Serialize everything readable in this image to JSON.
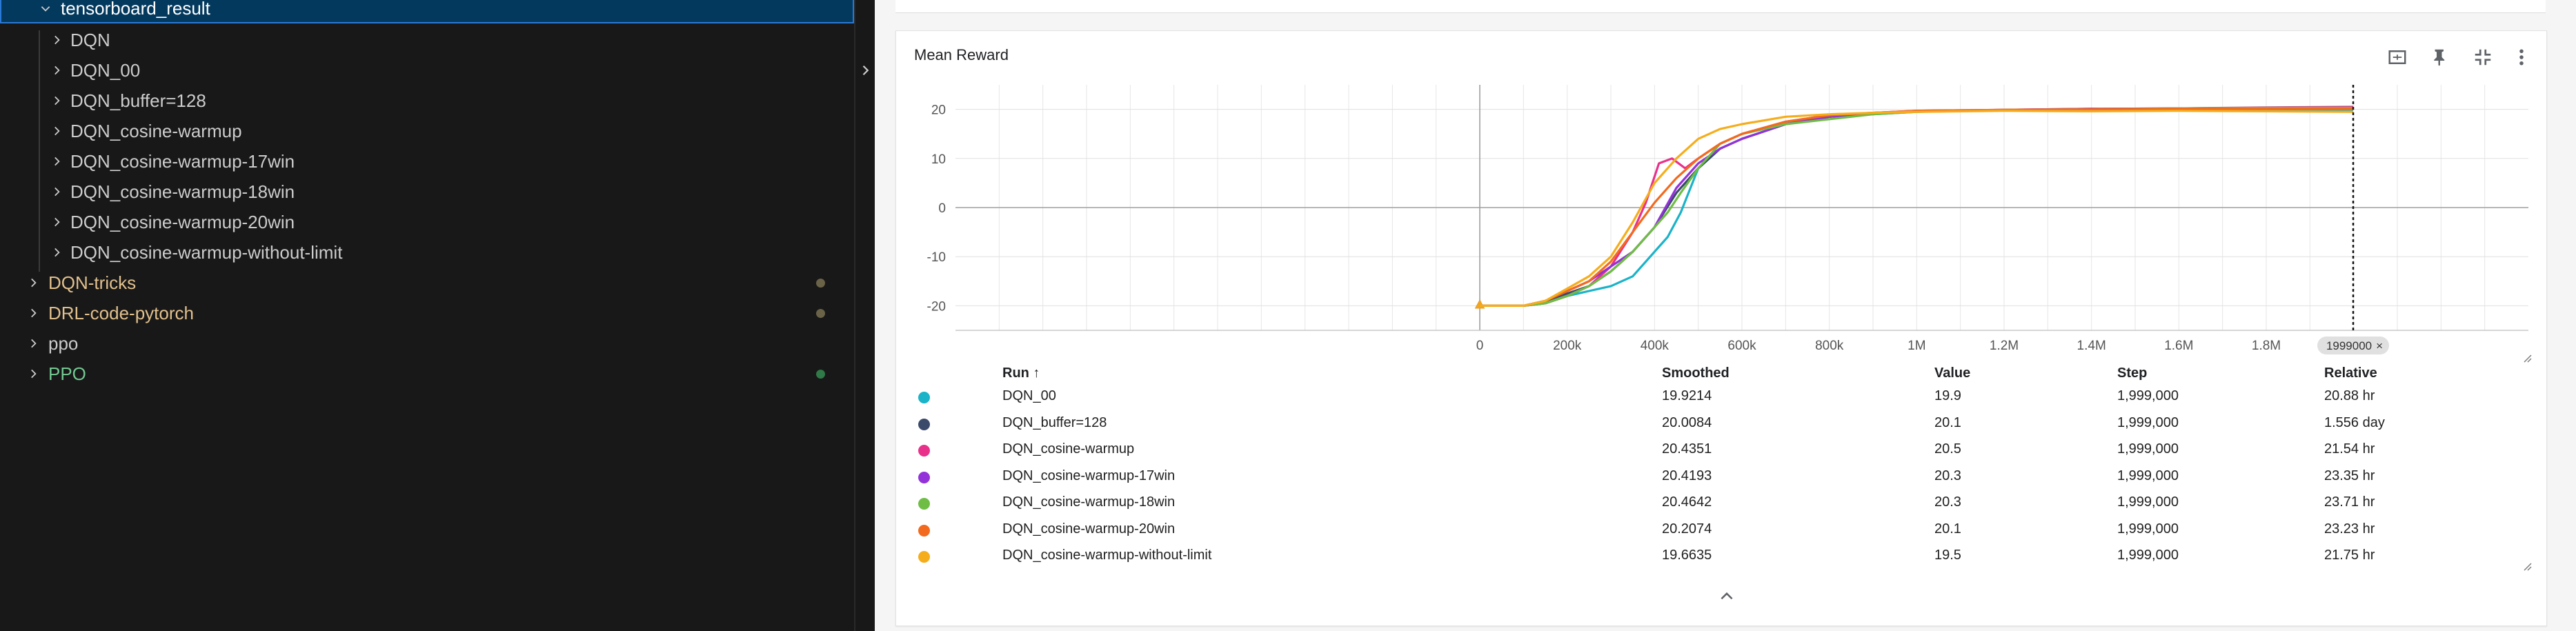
{
  "explorer": {
    "selected_folder": "tensorboard_result",
    "children": [
      "DQN",
      "DQN_00",
      "DQN_buffer=128",
      "DQN_cosine-warmup",
      "DQN_cosine-warmup-17win",
      "DQN_cosine-warmup-18win",
      "DQN_cosine-warmup-20win",
      "DQN_cosine-warmup-without-limit"
    ],
    "siblings": [
      {
        "label": "DQN-tricks",
        "color": "#e2c08d",
        "dot_color": "#6b6347"
      },
      {
        "label": "DRL-code-pytorch",
        "color": "#e2c08d",
        "dot_color": "#6b6347"
      },
      {
        "label": "ppo",
        "color": "#cccccc",
        "dot_color": ""
      },
      {
        "label": "PPO",
        "color": "#73c991",
        "dot_color": "#2f7a46"
      }
    ]
  },
  "chart_data": {
    "type": "line",
    "title": "Mean Reward",
    "xlabel": "",
    "ylabel": "",
    "xlim": [
      -1200000,
      2400000
    ],
    "ylim": [
      -25,
      25
    ],
    "x_ticks": [
      "0",
      "200k",
      "400k",
      "600k",
      "800k",
      "1M",
      "1.2M",
      "1.4M",
      "1.6M",
      "1.8M"
    ],
    "y_ticks": [
      "20",
      "10",
      "0",
      "-10",
      "-20"
    ],
    "cursor_label": "1999000",
    "grid": true,
    "series": [
      {
        "name": "DQN_00",
        "color": "#1ab3c8",
        "x": [
          0,
          50000,
          100000,
          150000,
          200000,
          250000,
          300000,
          350000,
          380000,
          400000,
          430000,
          460000,
          500000,
          550000,
          600000,
          700000,
          800000,
          900000,
          1000000,
          1200000,
          1400000,
          1600000,
          1800000,
          1999000
        ],
        "y": [
          -20,
          -20,
          -20,
          -19.5,
          -18,
          -17,
          -16,
          -14,
          -11,
          -9,
          -6,
          -1,
          8,
          12,
          14,
          17,
          18.5,
          19,
          19.5,
          19.8,
          19.9,
          19.9,
          19.9,
          19.9
        ]
      },
      {
        "name": "DQN_buffer=128",
        "color": "#3b4a6b",
        "x": [
          0,
          50000,
          100000,
          150000,
          200000,
          250000,
          300000,
          350000,
          400000,
          450000,
          500000,
          550000,
          600000,
          700000,
          800000,
          900000,
          1000000,
          1200000,
          1400000,
          1600000,
          1800000,
          1999000
        ],
        "y": [
          -20,
          -20,
          -20,
          -19,
          -17.5,
          -16,
          -13,
          -9,
          -4,
          3,
          8,
          12,
          14,
          17,
          18.5,
          19.2,
          19.6,
          19.8,
          20,
          20,
          20.1,
          20.1
        ]
      },
      {
        "name": "DQN_cosine-warmup",
        "color": "#e8318b",
        "x": [
          0,
          50000,
          100000,
          150000,
          200000,
          250000,
          300000,
          350000,
          380000,
          410000,
          440000,
          470000,
          500000,
          550000,
          600000,
          700000,
          800000,
          900000,
          1000000,
          1200000,
          1400000,
          1600000,
          1800000,
          1999000
        ],
        "y": [
          -20,
          -20,
          -20,
          -19.5,
          -18,
          -16,
          -12,
          -5,
          1,
          9,
          10,
          8,
          10,
          13,
          15,
          17.5,
          18.8,
          19.3,
          19.6,
          19.9,
          20.1,
          20.2,
          20.4,
          20.5
        ]
      },
      {
        "name": "DQN_cosine-warmup-17win",
        "color": "#9332d8",
        "x": [
          0,
          50000,
          100000,
          150000,
          200000,
          250000,
          300000,
          350000,
          400000,
          450000,
          500000,
          550000,
          600000,
          700000,
          800000,
          900000,
          1000000,
          1200000,
          1400000,
          1600000,
          1800000,
          1999000
        ],
        "y": [
          -20,
          -20,
          -20,
          -19,
          -17,
          -15,
          -12,
          -9,
          -4,
          4,
          9,
          12,
          14,
          17,
          18.5,
          19.3,
          19.7,
          19.9,
          20.1,
          20.2,
          20.3,
          20.3
        ]
      },
      {
        "name": "DQN_cosine-warmup-18win",
        "color": "#6fbd45",
        "x": [
          0,
          50000,
          100000,
          150000,
          200000,
          250000,
          300000,
          350000,
          400000,
          430000,
          460000,
          500000,
          550000,
          600000,
          700000,
          800000,
          900000,
          1000000,
          1200000,
          1400000,
          1600000,
          1800000,
          1999000
        ],
        "y": [
          -20,
          -20,
          -20,
          -19.5,
          -18,
          -16,
          -13,
          -9,
          -4,
          -1,
          3,
          8,
          13,
          15,
          17,
          18,
          19,
          19.5,
          19.9,
          20,
          20.2,
          20.3,
          20.3
        ]
      },
      {
        "name": "DQN_cosine-warmup-20win",
        "color": "#f26a1d",
        "x": [
          0,
          50000,
          100000,
          150000,
          200000,
          250000,
          300000,
          350000,
          400000,
          450000,
          500000,
          550000,
          600000,
          700000,
          800000,
          900000,
          1000000,
          1200000,
          1400000,
          1600000,
          1800000,
          1999000
        ],
        "y": [
          -20,
          -20,
          -20,
          -19,
          -17,
          -15,
          -11,
          -5,
          1,
          6,
          10,
          13,
          15,
          17.5,
          18.8,
          19.3,
          19.7,
          19.9,
          20,
          20.1,
          20.1,
          20.1
        ]
      },
      {
        "name": "DQN_cosine-warmup-without-limit",
        "color": "#f5ad1b",
        "x": [
          0,
          50000,
          100000,
          150000,
          200000,
          250000,
          300000,
          350000,
          400000,
          450000,
          500000,
          550000,
          600000,
          700000,
          800000,
          900000,
          1000000,
          1200000,
          1400000,
          1600000,
          1800000,
          1999000
        ],
        "y": [
          -20,
          -20,
          -20,
          -19,
          -16.5,
          -14,
          -10,
          -3,
          5,
          10,
          14,
          16,
          17,
          18.5,
          19,
          19.3,
          19.5,
          19.7,
          19.6,
          19.7,
          19.6,
          19.5
        ]
      }
    ]
  },
  "table": {
    "headers": {
      "run": "Run ↑",
      "smoothed": "Smoothed",
      "value": "Value",
      "step": "Step",
      "relative": "Relative"
    },
    "rows": [
      {
        "run": "DQN_00",
        "color": "#1ab3c8",
        "smoothed": "19.9214",
        "value": "19.9",
        "step": "1,999,000",
        "relative": "20.88 hr"
      },
      {
        "run": "DQN_buffer=128",
        "color": "#3b4a6b",
        "smoothed": "20.0084",
        "value": "20.1",
        "step": "1,999,000",
        "relative": "1.556 day"
      },
      {
        "run": "DQN_cosine-warmup",
        "color": "#e8318b",
        "smoothed": "20.4351",
        "value": "20.5",
        "step": "1,999,000",
        "relative": "21.54 hr"
      },
      {
        "run": "DQN_cosine-warmup-17win",
        "color": "#9332d8",
        "smoothed": "20.4193",
        "value": "20.3",
        "step": "1,999,000",
        "relative": "23.35 hr"
      },
      {
        "run": "DQN_cosine-warmup-18win",
        "color": "#6fbd45",
        "smoothed": "20.4642",
        "value": "20.3",
        "step": "1,999,000",
        "relative": "23.71 hr"
      },
      {
        "run": "DQN_cosine-warmup-20win",
        "color": "#f26a1d",
        "smoothed": "20.2074",
        "value": "20.1",
        "step": "1,999,000",
        "relative": "23.23 hr"
      },
      {
        "run": "DQN_cosine-warmup-without-limit",
        "color": "#f5ad1b",
        "smoothed": "19.6635",
        "value": "19.5",
        "step": "1,999,000",
        "relative": "21.75 hr"
      }
    ]
  },
  "icons": {
    "fit_domain": "fit-to-data-icon",
    "pin": "pin-icon",
    "exit_fullscreen": "exit-fullscreen-icon",
    "more": "more-vert-icon",
    "expand": "chevron-up-icon"
  }
}
